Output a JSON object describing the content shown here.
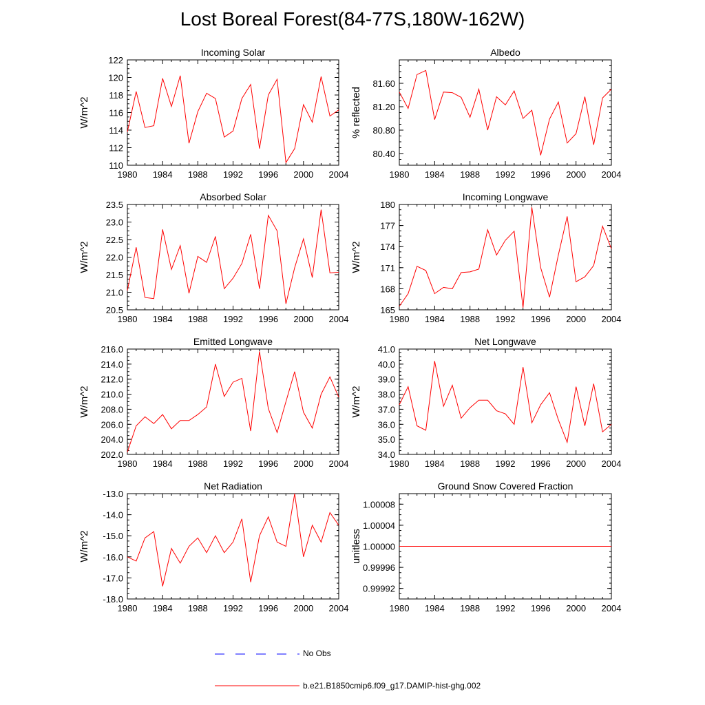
{
  "title": "Lost Boreal Forest(84-77S,180W-162W)",
  "legend": {
    "obs_label": "No Obs",
    "obs_color": "#0000ff",
    "model_label": "b.e21.B1850cmip6.f09_g17.DAMIP-hist-ghg.002",
    "model_color": "#ff0000"
  },
  "chart_data": [
    {
      "type": "line",
      "title": "Incoming Solar",
      "ylabel": "W/m^2",
      "xlim": [
        1980,
        2004
      ],
      "ylim": [
        110,
        122
      ],
      "yticks": [
        110,
        112,
        114,
        116,
        118,
        120,
        122
      ],
      "ytick_labels": [
        "110",
        "112",
        "114",
        "116",
        "118",
        "120",
        "122"
      ],
      "xticks": [
        1980,
        1984,
        1988,
        1992,
        1996,
        2000,
        2004
      ],
      "series": [
        {
          "name": "b.e21.B1850cmip6.f09_g17.DAMIP-hist-ghg.002",
          "x": [
            1980,
            1981,
            1982,
            1983,
            1984,
            1985,
            1986,
            1987,
            1988,
            1989,
            1990,
            1991,
            1992,
            1993,
            1994,
            1995,
            1996,
            1997,
            1998,
            1999,
            2000,
            2001,
            2002,
            2003,
            2004
          ],
          "y": [
            113.8,
            118.4,
            114.3,
            114.5,
            119.9,
            116.7,
            120.2,
            112.5,
            116.1,
            118.2,
            117.6,
            113.2,
            113.9,
            117.6,
            119.2,
            111.9,
            118.0,
            119.8,
            110.3,
            111.9,
            116.9,
            114.9,
            120.1,
            115.6,
            116.3
          ]
        }
      ]
    },
    {
      "type": "line",
      "title": "Albedo",
      "ylabel": "% reflected",
      "xlim": [
        1980,
        2004
      ],
      "ylim": [
        80.2,
        82.0
      ],
      "yticks": [
        80.4,
        80.8,
        81.2,
        81.6
      ],
      "ytick_labels": [
        "80.40",
        "80.80",
        "81.20",
        "81.60"
      ],
      "xticks": [
        1980,
        1984,
        1988,
        1992,
        1996,
        2000,
        2004
      ],
      "series": [
        {
          "name": "b.e21.B1850cmip6.f09_g17.DAMIP-hist-ghg.002",
          "x": [
            1980,
            1981,
            1982,
            1983,
            1984,
            1985,
            1986,
            1987,
            1988,
            1989,
            1990,
            1991,
            1992,
            1993,
            1994,
            1995,
            1996,
            1997,
            1998,
            1999,
            2000,
            2001,
            2002,
            2003,
            2004
          ],
          "y": [
            81.45,
            81.17,
            81.75,
            81.82,
            80.98,
            81.45,
            81.44,
            81.36,
            81.02,
            81.5,
            80.8,
            81.37,
            81.23,
            81.47,
            81.0,
            81.14,
            80.37,
            80.99,
            81.28,
            80.58,
            80.74,
            81.37,
            80.55,
            81.35,
            81.5
          ]
        }
      ]
    },
    {
      "type": "line",
      "title": "Absorbed Solar",
      "ylabel": "W/m^2",
      "xlim": [
        1980,
        2004
      ],
      "ylim": [
        20.5,
        23.5
      ],
      "yticks": [
        20.5,
        21.0,
        21.5,
        22.0,
        22.5,
        23.0,
        23.5
      ],
      "ytick_labels": [
        "20.5",
        "21.0",
        "21.5",
        "22.0",
        "22.5",
        "23.0",
        "23.5"
      ],
      "xticks": [
        1980,
        1984,
        1988,
        1992,
        1996,
        2000,
        2004
      ],
      "series": [
        {
          "name": "b.e21.B1850cmip6.f09_g17.DAMIP-hist-ghg.002",
          "x": [
            1980,
            1981,
            1982,
            1983,
            1984,
            1985,
            1986,
            1987,
            1988,
            1989,
            1990,
            1991,
            1992,
            1993,
            1994,
            1995,
            1996,
            1997,
            1998,
            1999,
            2000,
            2001,
            2002,
            2003,
            2004
          ],
          "y": [
            21.05,
            22.28,
            20.85,
            20.82,
            22.79,
            21.65,
            22.33,
            20.97,
            22.02,
            21.85,
            22.59,
            21.1,
            21.4,
            21.82,
            22.65,
            21.1,
            23.19,
            22.75,
            20.67,
            21.7,
            22.52,
            21.42,
            23.35,
            21.55,
            21.57
          ]
        }
      ]
    },
    {
      "type": "line",
      "title": "Incoming Longwave",
      "ylabel": "W/m^2",
      "xlim": [
        1980,
        2004
      ],
      "ylim": [
        165,
        180
      ],
      "yticks": [
        165,
        168,
        171,
        174,
        177,
        180
      ],
      "ytick_labels": [
        "165",
        "168",
        "171",
        "174",
        "177",
        "180"
      ],
      "xticks": [
        1980,
        1984,
        1988,
        1992,
        1996,
        2000,
        2004
      ],
      "series": [
        {
          "name": "b.e21.B1850cmip6.f09_g17.DAMIP-hist-ghg.002",
          "x": [
            1980,
            1981,
            1982,
            1983,
            1984,
            1985,
            1986,
            1987,
            1988,
            1989,
            1990,
            1991,
            1992,
            1993,
            1994,
            1995,
            1996,
            1997,
            1998,
            1999,
            2000,
            2001,
            2002,
            2003,
            2004
          ],
          "y": [
            165.5,
            167.3,
            171.2,
            170.6,
            167.3,
            168.2,
            168.0,
            170.3,
            170.4,
            170.8,
            176.4,
            172.8,
            174.9,
            176.2,
            165.3,
            179.6,
            171.0,
            166.8,
            172.8,
            178.3,
            169.0,
            169.7,
            171.3,
            176.9,
            173.7
          ]
        }
      ]
    },
    {
      "type": "line",
      "title": "Emitted Longwave",
      "ylabel": "W/m^2",
      "xlim": [
        1980,
        2004
      ],
      "ylim": [
        202,
        216
      ],
      "yticks": [
        202,
        204,
        206,
        208,
        210,
        212,
        214,
        216
      ],
      "ytick_labels": [
        "202.0",
        "204.0",
        "206.0",
        "208.0",
        "210.0",
        "212.0",
        "214.0",
        "216.0"
      ],
      "xticks": [
        1980,
        1984,
        1988,
        1992,
        1996,
        2000,
        2004
      ],
      "series": [
        {
          "name": "b.e21.B1850cmip6.f09_g17.DAMIP-hist-ghg.002",
          "x": [
            1980,
            1981,
            1982,
            1983,
            1984,
            1985,
            1986,
            1987,
            1988,
            1989,
            1990,
            1991,
            1992,
            1993,
            1994,
            1995,
            1996,
            1997,
            1998,
            1999,
            2000,
            2001,
            2002,
            2003,
            2004
          ],
          "y": [
            202.3,
            205.8,
            207.0,
            206.1,
            207.3,
            205.4,
            206.5,
            206.5,
            207.3,
            208.3,
            214.0,
            209.7,
            211.6,
            212.1,
            205.1,
            215.7,
            208.1,
            204.9,
            209.0,
            213.0,
            207.6,
            205.5,
            210.0,
            212.3,
            209.6
          ]
        }
      ]
    },
    {
      "type": "line",
      "title": "Net Longwave",
      "ylabel": "W/m^2",
      "xlim": [
        1980,
        2004
      ],
      "ylim": [
        34,
        41
      ],
      "yticks": [
        34,
        35,
        36,
        37,
        38,
        39,
        40,
        41
      ],
      "ytick_labels": [
        "34.0",
        "35.0",
        "36.0",
        "37.0",
        "38.0",
        "39.0",
        "40.0",
        "41.0"
      ],
      "xticks": [
        1980,
        1984,
        1988,
        1992,
        1996,
        2000,
        2004
      ],
      "series": [
        {
          "name": "b.e21.B1850cmip6.f09_g17.DAMIP-hist-ghg.002",
          "x": [
            1980,
            1981,
            1982,
            1983,
            1984,
            1985,
            1986,
            1987,
            1988,
            1989,
            1990,
            1991,
            1992,
            1993,
            1994,
            1995,
            1996,
            1997,
            1998,
            1999,
            2000,
            2001,
            2002,
            2003,
            2004
          ],
          "y": [
            37.3,
            38.5,
            35.9,
            35.6,
            40.2,
            37.2,
            38.6,
            36.4,
            37.1,
            37.6,
            37.6,
            36.9,
            36.7,
            36.0,
            39.8,
            36.1,
            37.3,
            38.1,
            36.3,
            34.8,
            38.5,
            35.9,
            38.7,
            35.5,
            36.0
          ]
        }
      ]
    },
    {
      "type": "line",
      "title": "Net Radiation",
      "ylabel": "W/m^2",
      "xlim": [
        1980,
        2004
      ],
      "ylim": [
        -18,
        -13
      ],
      "yticks": [
        -18,
        -17,
        -16,
        -15,
        -14,
        -13
      ],
      "ytick_labels": [
        "-18.0",
        "-17.0",
        "-16.0",
        "-15.0",
        "-14.0",
        "-13.0"
      ],
      "xticks": [
        1980,
        1984,
        1988,
        1992,
        1996,
        2000,
        2004
      ],
      "series": [
        {
          "name": "b.e21.B1850cmip6.f09_g17.DAMIP-hist-ghg.002",
          "x": [
            1980,
            1981,
            1982,
            1983,
            1984,
            1985,
            1986,
            1987,
            1988,
            1989,
            1990,
            1991,
            1992,
            1993,
            1994,
            1995,
            1996,
            1997,
            1998,
            1999,
            2000,
            2001,
            2002,
            2003,
            2004
          ],
          "y": [
            -16.0,
            -16.2,
            -15.1,
            -14.8,
            -17.4,
            -15.6,
            -16.3,
            -15.5,
            -15.1,
            -15.8,
            -15.0,
            -15.8,
            -15.3,
            -14.2,
            -17.2,
            -15.0,
            -14.1,
            -15.3,
            -15.5,
            -13.0,
            -16.0,
            -14.5,
            -15.3,
            -13.9,
            -14.5
          ]
        }
      ]
    },
    {
      "type": "line",
      "title": "Ground Snow Covered Fraction",
      "ylabel": "unitless",
      "xlim": [
        1980,
        2004
      ],
      "ylim": [
        0.9999,
        1.0001
      ],
      "yticks": [
        0.99992,
        0.99996,
        1.0,
        1.00004,
        1.00008
      ],
      "ytick_labels": [
        "0.99992",
        "0.99996",
        "1.00000",
        "1.00004",
        "1.00008"
      ],
      "xticks": [
        1980,
        1984,
        1988,
        1992,
        1996,
        2000,
        2004
      ],
      "series": [
        {
          "name": "b.e21.B1850cmip6.f09_g17.DAMIP-hist-ghg.002",
          "x": [
            1980,
            2004
          ],
          "y": [
            1.0,
            1.0
          ]
        }
      ]
    }
  ]
}
